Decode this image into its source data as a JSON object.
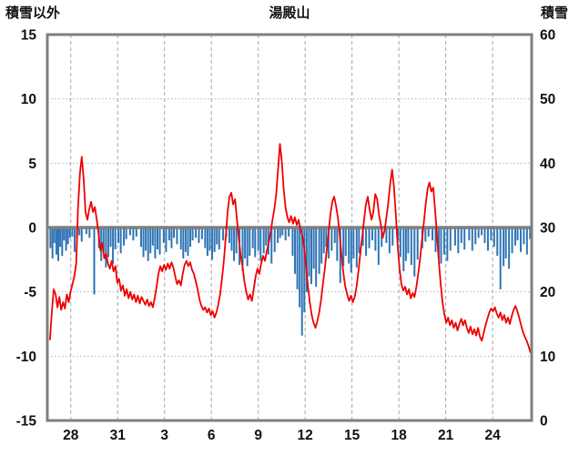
{
  "header": {
    "left_axis_title": "積雪以外",
    "title": "湯殿山",
    "right_axis_title": "積雪"
  },
  "chart_data": {
    "type": "line+bar",
    "title": "湯殿山",
    "left_axis": {
      "label": "積雪以外",
      "min": -15,
      "max": 15,
      "ticks": [
        15,
        10,
        5,
        0,
        -5,
        -10,
        -15
      ],
      "grid_values": [
        10,
        5,
        -5,
        -10
      ]
    },
    "right_axis": {
      "label": "積雪",
      "min": 0,
      "max": 60,
      "ticks": [
        60,
        50,
        40,
        30,
        20,
        10,
        0
      ]
    },
    "x_axis": {
      "tick_labels": [
        "28",
        "31",
        "3",
        "6",
        "9",
        "12",
        "15",
        "18",
        "21",
        "24"
      ],
      "tick_days": [
        1.5,
        4.5,
        7.5,
        10.5,
        13.5,
        16.5,
        19.5,
        22.5,
        25.5,
        28.5
      ],
      "range_days": [
        0,
        31
      ]
    },
    "colors": {
      "line": "#f00000",
      "bars": "#2e75b6",
      "frame": "#7f7f7f",
      "zero_line": "#7f7f7f",
      "v_grid": "#a6a6a6",
      "h_grid": "#b3b3b3",
      "text": "#111111",
      "background": "#ffffff"
    },
    "line_series": {
      "name": "red-line",
      "start_day": 0.17,
      "end_day": 30.92,
      "values": [
        -8.7,
        -6.5,
        -4.8,
        -5.2,
        -6.2,
        -5.4,
        -6.4,
        -5.8,
        -6.3,
        -5.2,
        -5.8,
        -5.0,
        -4.4,
        -3.8,
        -2.8,
        1.5,
        4.2,
        5.5,
        3.8,
        1.2,
        0.6,
        1.4,
        2.0,
        1.2,
        1.6,
        0.6,
        -0.5,
        -1.8,
        -1.2,
        -2.4,
        -2.0,
        -2.8,
        -3.2,
        -2.6,
        -3.4,
        -3.0,
        -4.3,
        -4.0,
        -4.9,
        -4.5,
        -5.3,
        -4.8,
        -5.5,
        -5.0,
        -5.6,
        -5.2,
        -5.8,
        -5.3,
        -5.9,
        -5.4,
        -5.7,
        -6.0,
        -5.6,
        -6.1,
        -5.8,
        -6.2,
        -5.5,
        -4.6,
        -3.6,
        -3.0,
        -3.4,
        -2.9,
        -3.3,
        -2.8,
        -3.2,
        -2.7,
        -3.1,
        -3.8,
        -4.4,
        -4.1,
        -4.5,
        -3.6,
        -2.9,
        -2.6,
        -3.0,
        -2.7,
        -3.3,
        -3.6,
        -4.2,
        -4.8,
        -5.6,
        -6.1,
        -6.4,
        -6.2,
        -6.6,
        -6.3,
        -6.8,
        -6.5,
        -7.0,
        -6.6,
        -6.0,
        -5.2,
        -4.0,
        -2.6,
        -0.8,
        1.2,
        2.4,
        2.7,
        1.8,
        2.2,
        0.6,
        -0.8,
        -2.2,
        -3.0,
        -4.2,
        -5.0,
        -5.6,
        -5.2,
        -5.7,
        -4.8,
        -3.8,
        -3.2,
        -3.6,
        -2.8,
        -2.2,
        -2.6,
        -1.8,
        -1.2,
        -0.4,
        0.6,
        1.4,
        2.6,
        4.5,
        6.5,
        5.2,
        3.0,
        1.6,
        0.8,
        0.4,
        0.9,
        0.3,
        0.8,
        0.2,
        0.6,
        -0.2,
        -0.6,
        -1.6,
        -3.0,
        -4.6,
        -5.8,
        -6.8,
        -7.4,
        -7.8,
        -7.3,
        -6.6,
        -5.6,
        -4.4,
        -3.2,
        -1.8,
        -0.4,
        1.0,
        2.0,
        2.4,
        1.7,
        0.8,
        -0.6,
        -2.2,
        -3.6,
        -4.6,
        -5.2,
        -5.7,
        -5.3,
        -5.8,
        -5.4,
        -4.6,
        -3.4,
        -2.0,
        -0.8,
        0.6,
        1.8,
        2.4,
        1.4,
        0.6,
        1.2,
        2.6,
        2.2,
        1.0,
        0.2,
        -0.8,
        -0.2,
        0.8,
        2.0,
        3.4,
        4.5,
        3.2,
        1.0,
        -1.4,
        -3.2,
        -4.4,
        -4.9,
        -4.6,
        -5.2,
        -4.8,
        -5.5,
        -5.1,
        -5.4,
        -4.6,
        -3.6,
        -2.4,
        -1.0,
        0.4,
        1.8,
        3.0,
        3.5,
        2.8,
        3.1,
        1.4,
        -0.6,
        -2.6,
        -4.4,
        -5.8,
        -6.8,
        -7.4,
        -7.0,
        -7.6,
        -7.2,
        -7.8,
        -7.4,
        -8.0,
        -7.5,
        -7.1,
        -7.6,
        -7.2,
        -7.8,
        -8.2,
        -7.7,
        -8.3,
        -7.9,
        -8.4,
        -7.8,
        -8.5,
        -8.8,
        -8.2,
        -7.6,
        -7.1,
        -6.6,
        -6.3,
        -6.5,
        -6.2,
        -6.7,
        -7.0,
        -6.6,
        -7.2,
        -6.8,
        -7.4,
        -7.0,
        -7.5,
        -6.9,
        -6.4,
        -6.1,
        -6.5,
        -7.0,
        -7.6,
        -8.1,
        -8.5,
        -8.8,
        -9.2,
        -9.7
      ]
    },
    "bar_series": {
      "name": "blue-bars",
      "points": [
        [
          0.2,
          -1.6
        ],
        [
          0.33,
          -2.4
        ],
        [
          0.45,
          -1.2
        ],
        [
          0.58,
          -2.1
        ],
        [
          0.7,
          -2.6
        ],
        [
          0.82,
          -1.5
        ],
        [
          0.95,
          -2.2
        ],
        [
          1.07,
          -1.0
        ],
        [
          1.2,
          -1.8
        ],
        [
          1.32,
          -1.3
        ],
        [
          1.45,
          -0.8
        ],
        [
          1.6,
          -0.7
        ],
        [
          1.75,
          -1.9
        ],
        [
          1.9,
          -0.9
        ],
        [
          2.05,
          -0.6
        ],
        [
          2.2,
          -1.1
        ],
        [
          2.5,
          -0.5
        ],
        [
          2.7,
          -0.8
        ],
        [
          3.0,
          -5.2
        ],
        [
          3.3,
          -1.6
        ],
        [
          3.45,
          -2.6
        ],
        [
          3.6,
          -1.9
        ],
        [
          3.75,
          -3.1
        ],
        [
          3.9,
          -2.3
        ],
        [
          4.05,
          -1.5
        ],
        [
          4.2,
          -2.8
        ],
        [
          4.35,
          -1.7
        ],
        [
          4.55,
          -1.2
        ],
        [
          4.7,
          -2.0
        ],
        [
          4.9,
          -1.4
        ],
        [
          5.05,
          -0.9
        ],
        [
          5.3,
          -0.6
        ],
        [
          5.5,
          -1.0
        ],
        [
          5.7,
          -0.7
        ],
        [
          6.0,
          -1.5
        ],
        [
          6.15,
          -2.3
        ],
        [
          6.3,
          -1.8
        ],
        [
          6.45,
          -2.6
        ],
        [
          6.6,
          -2.0
        ],
        [
          6.75,
          -1.4
        ],
        [
          6.9,
          -2.4
        ],
        [
          7.05,
          -1.7
        ],
        [
          7.2,
          -2.1
        ],
        [
          7.45,
          -1.2
        ],
        [
          7.6,
          -1.9
        ],
        [
          7.8,
          -1.0
        ],
        [
          7.95,
          -1.6
        ],
        [
          8.1,
          -0.8
        ],
        [
          8.3,
          -1.3
        ],
        [
          8.55,
          -1.7
        ],
        [
          8.7,
          -2.4
        ],
        [
          8.85,
          -1.9
        ],
        [
          9.0,
          -2.2
        ],
        [
          9.15,
          -1.5
        ],
        [
          9.3,
          -1.0
        ],
        [
          9.5,
          -0.8
        ],
        [
          9.7,
          -1.2
        ],
        [
          9.9,
          -0.9
        ],
        [
          10.1,
          -1.6
        ],
        [
          10.25,
          -2.2
        ],
        [
          10.4,
          -1.8
        ],
        [
          10.55,
          -2.5
        ],
        [
          10.7,
          -1.9
        ],
        [
          10.85,
          -1.3
        ],
        [
          11.0,
          -1.7
        ],
        [
          11.25,
          -1.0
        ],
        [
          11.45,
          -0.7
        ],
        [
          11.65,
          -1.2
        ],
        [
          11.8,
          -1.8
        ],
        [
          11.95,
          -2.6
        ],
        [
          12.1,
          -2.0
        ],
        [
          12.3,
          -2.9
        ],
        [
          12.5,
          -3.4
        ],
        [
          12.65,
          -2.4
        ],
        [
          12.8,
          -3.0
        ],
        [
          12.95,
          -2.2
        ],
        [
          13.15,
          -1.6
        ],
        [
          13.3,
          -2.3
        ],
        [
          13.5,
          -1.8
        ],
        [
          13.65,
          -2.6
        ],
        [
          13.85,
          -2.0
        ],
        [
          14.0,
          -1.4
        ],
        [
          14.15,
          -2.1
        ],
        [
          14.35,
          -2.8
        ],
        [
          14.55,
          -1.9
        ],
        [
          14.75,
          -1.2
        ],
        [
          14.9,
          -0.8
        ],
        [
          15.05,
          -0.6
        ],
        [
          15.25,
          -1.0
        ],
        [
          15.45,
          -0.7
        ],
        [
          15.7,
          -2.2
        ],
        [
          15.85,
          -3.6
        ],
        [
          16.0,
          -4.8
        ],
        [
          16.15,
          -6.2
        ],
        [
          16.3,
          -8.4
        ],
        [
          16.45,
          -6.6
        ],
        [
          16.6,
          -5.0
        ],
        [
          16.75,
          -3.8
        ],
        [
          16.9,
          -4.4
        ],
        [
          17.05,
          -3.2
        ],
        [
          17.2,
          -4.6
        ],
        [
          17.4,
          -3.6
        ],
        [
          17.55,
          -2.8
        ],
        [
          17.7,
          -2.0
        ],
        [
          17.85,
          -1.5
        ],
        [
          18.0,
          -2.4
        ],
        [
          18.2,
          -1.8
        ],
        [
          18.4,
          -1.2
        ],
        [
          18.55,
          -2.6
        ],
        [
          18.75,
          -4.3
        ],
        [
          18.95,
          -3.0
        ],
        [
          19.1,
          -2.2
        ],
        [
          19.3,
          -2.8
        ],
        [
          19.45,
          -3.5
        ],
        [
          19.6,
          -2.4
        ],
        [
          19.8,
          -3.1
        ],
        [
          19.95,
          -2.0
        ],
        [
          20.2,
          -1.4
        ],
        [
          20.4,
          -2.2
        ],
        [
          20.6,
          -1.6
        ],
        [
          20.8,
          -1.0
        ],
        [
          21.0,
          -1.8
        ],
        [
          21.2,
          -2.9
        ],
        [
          21.4,
          -1.5
        ],
        [
          21.7,
          -1.2
        ],
        [
          21.9,
          -2.0
        ],
        [
          22.1,
          -1.4
        ],
        [
          22.45,
          -1.0
        ],
        [
          22.6,
          -2.3
        ],
        [
          22.8,
          -3.4
        ],
        [
          22.95,
          -2.6
        ],
        [
          23.1,
          -2.0
        ],
        [
          23.3,
          -2.9
        ],
        [
          23.5,
          -3.8
        ],
        [
          23.7,
          -2.5
        ],
        [
          24.0,
          -1.6
        ],
        [
          24.2,
          -1.1
        ],
        [
          24.4,
          -0.7
        ],
        [
          24.65,
          -1.0
        ],
        [
          24.85,
          -1.9
        ],
        [
          25.05,
          -2.4
        ],
        [
          25.2,
          -2.8
        ],
        [
          25.4,
          -2.1
        ],
        [
          25.6,
          -2.6
        ],
        [
          25.8,
          -1.8
        ],
        [
          26.1,
          -1.4
        ],
        [
          26.3,
          -2.0
        ],
        [
          26.5,
          -1.2
        ],
        [
          26.7,
          -1.7
        ],
        [
          27.0,
          -1.0
        ],
        [
          27.2,
          -1.8
        ],
        [
          27.4,
          -1.3
        ],
        [
          27.6,
          -0.8
        ],
        [
          27.8,
          -0.6
        ],
        [
          28.0,
          -1.2
        ],
        [
          28.2,
          -1.8
        ],
        [
          28.4,
          -1.0
        ],
        [
          28.6,
          -1.5
        ],
        [
          28.8,
          -2.2
        ],
        [
          29.0,
          -4.8
        ],
        [
          29.2,
          -3.0
        ],
        [
          29.35,
          -2.4
        ],
        [
          29.55,
          -3.2
        ],
        [
          29.75,
          -2.0
        ],
        [
          29.95,
          -1.4
        ],
        [
          30.1,
          -1.0
        ],
        [
          30.3,
          -1.9
        ],
        [
          30.5,
          -1.3
        ],
        [
          30.7,
          -2.1
        ],
        [
          30.9,
          -0.9
        ]
      ]
    }
  }
}
